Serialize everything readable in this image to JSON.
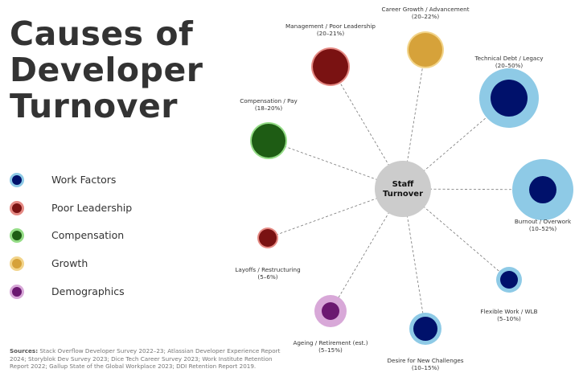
{
  "title_lines": [
    "Causes of",
    "Developer",
    "Turnover"
  ],
  "center": {
    "lines": [
      "Staff",
      "Turnover"
    ],
    "color": "#cccccc"
  },
  "legend": [
    {
      "label": "Work Factors",
      "outer": "#8ecae6",
      "inner": "#00116b"
    },
    {
      "label": "Poor Leadership",
      "outer": "#e58a84",
      "inner": "#7a1212"
    },
    {
      "label": "Compensation",
      "outer": "#94dc86",
      "inner": "#1e5c14"
    },
    {
      "label": "Growth",
      "outer": "#f2d48a",
      "inner": "#d6a23a"
    },
    {
      "label": "Demographics",
      "outer": "#d8a8d8",
      "inner": "#6b1870"
    }
  ],
  "nodes": [
    {
      "id": "career-growth",
      "lines": [
        "Career Growth / Advancement",
        "(20–22%)"
      ],
      "outer": "#f2d48a",
      "inner": "#d6a23a"
    },
    {
      "id": "management",
      "lines": [
        "Management / Poor Leadership",
        "(20–21%)"
      ],
      "outer": "#e58a84",
      "inner": "#7a1212"
    },
    {
      "id": "technical-debt",
      "lines": [
        "Technical Debt / Legacy",
        "(20–50%)"
      ],
      "outer": "#8ecae6",
      "inner": "#00116b"
    },
    {
      "id": "compensation",
      "lines": [
        "Compensation / Pay",
        "(18–20%)"
      ],
      "outer": "#94dc86",
      "inner": "#1e5c14"
    },
    {
      "id": "burnout",
      "lines": [
        "Burnout / Overwork",
        "(10–52%)"
      ],
      "outer": "#8ecae6",
      "inner": "#00116b"
    },
    {
      "id": "layoffs",
      "lines": [
        "Layoffs / Restructuring",
        "(5–6%)"
      ],
      "outer": "#e58a84",
      "inner": "#7a1212"
    },
    {
      "id": "flexible-work",
      "lines": [
        "Flexible Work / WLB",
        "(5–10%)"
      ],
      "outer": "#8ecae6",
      "inner": "#00116b"
    },
    {
      "id": "ageing",
      "lines": [
        "Ageing / Retirement (est.)",
        "(5–15%)"
      ],
      "outer": "#d8a8d8",
      "inner": "#6b1870"
    },
    {
      "id": "new-challenges",
      "lines": [
        "Desire for New Challenges",
        "(10–15%)"
      ],
      "outer": "#8ecae6",
      "inner": "#00116b"
    }
  ],
  "sources": {
    "label": "Sources:",
    "text": "Stack Overflow Developer Survey 2022–23; Atlassian Developer Experience Report 2024; Storyblok Dev Survey 2023; Dice Tech Career Survey 2023; Work Institute Retention Report 2022; Gallup State of the Global Workplace 2023; DDI Retention Report 2019."
  }
}
